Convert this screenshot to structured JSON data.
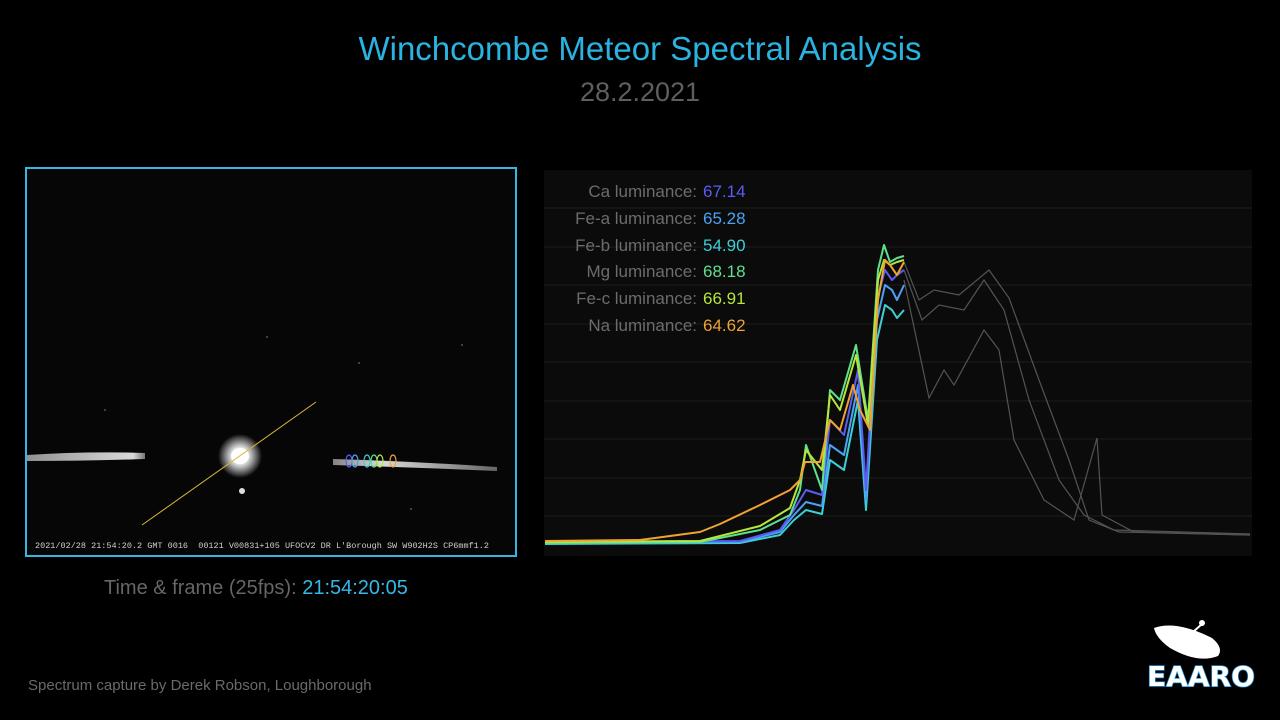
{
  "header": {
    "title": "Winchcombe Meteor Spectral Analysis",
    "date": "28.2.2021"
  },
  "video": {
    "overlay": "2021/02/28 21:54:20.2 GMT 0016  00121 V00831+105 UFOCV2 DR L'Borough SW W902H2S CP6mmf1.2",
    "timecode_label": "Time & frame (25fps):",
    "timecode": "21:54:20:05"
  },
  "luminance": [
    {
      "label": "Ca luminance:",
      "value": "67.14",
      "color": "#5a5df2"
    },
    {
      "label": "Fe-a luminance:",
      "value": "65.28",
      "color": "#4aa2f4"
    },
    {
      "label": "Fe-b luminance:",
      "value": "54.90",
      "color": "#3ccfd6"
    },
    {
      "label": "Mg luminance:",
      "value": "68.18",
      "color": "#5ee08c"
    },
    {
      "label": "Fe-c luminance:",
      "value": "66.91",
      "color": "#b6e63c"
    },
    {
      "label": "Na luminance:",
      "value": "64.62",
      "color": "#f0a232"
    }
  ],
  "credit": "Spectrum capture by Derek Robson, Loughborough",
  "logo": "EAARO"
}
